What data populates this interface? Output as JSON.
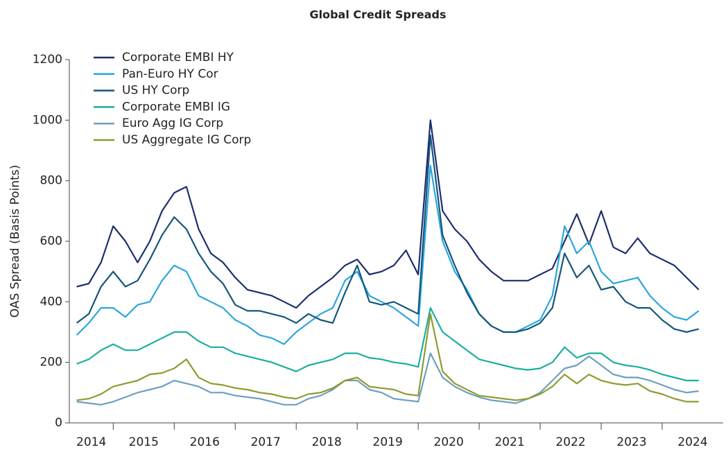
{
  "chart_data": {
    "type": "line",
    "title": "Global Credit Spreads",
    "y_label": "OAS Spread (Basis Points)",
    "categories": [
      "2014",
      "2015",
      "2016",
      "2017",
      "2018",
      "2019",
      "2020",
      "2021",
      "2022",
      "2023",
      "2024"
    ],
    "x": [
      2014.4,
      2014.6,
      2014.8,
      2015.0,
      2015.2,
      2015.4,
      2015.6,
      2015.8,
      2016.0,
      2016.2,
      2016.4,
      2016.6,
      2016.8,
      2017.0,
      2017.2,
      2017.4,
      2017.6,
      2017.8,
      2018.0,
      2018.2,
      2018.4,
      2018.6,
      2018.8,
      2019.0,
      2019.2,
      2019.4,
      2019.6,
      2019.8,
      2020.0,
      2020.2,
      2020.4,
      2020.6,
      2020.8,
      2021.0,
      2021.2,
      2021.4,
      2021.6,
      2021.8,
      2022.0,
      2022.2,
      2022.4,
      2022.6,
      2022.8,
      2023.0,
      2023.2,
      2023.4,
      2023.6,
      2023.8,
      2024.0,
      2024.2,
      2024.4,
      2024.6
    ],
    "xlim": [
      2014.28,
      2025
    ],
    "xticks": [
      2015,
      2016,
      2017,
      2018,
      2019,
      2020,
      2021,
      2022,
      2023,
      2024
    ],
    "ylim": [
      0,
      1200
    ],
    "yticks": [
      0,
      200,
      400,
      600,
      800,
      1000,
      1200
    ],
    "legend": "upper left",
    "series": [
      {
        "name": "Corporate EMBI HY",
        "color": "#1b2f6e",
        "values": [
          450,
          460,
          530,
          650,
          600,
          530,
          600,
          700,
          760,
          780,
          640,
          560,
          530,
          480,
          440,
          430,
          420,
          400,
          380,
          420,
          450,
          480,
          520,
          540,
          490,
          500,
          520,
          570,
          490,
          1000,
          700,
          640,
          600,
          540,
          500,
          470,
          470,
          470,
          490,
          510,
          600,
          690,
          590,
          700,
          580,
          560,
          610,
          560,
          540,
          520,
          480,
          440
        ]
      },
      {
        "name": "Pan-Euro HY Cor",
        "color": "#2aa6dc",
        "values": [
          290,
          330,
          380,
          380,
          350,
          390,
          400,
          470,
          520,
          500,
          420,
          400,
          380,
          340,
          320,
          290,
          280,
          260,
          300,
          330,
          360,
          380,
          470,
          500,
          420,
          400,
          380,
          350,
          320,
          850,
          600,
          500,
          440,
          360,
          320,
          300,
          300,
          320,
          340,
          420,
          650,
          560,
          600,
          500,
          460,
          470,
          480,
          420,
          380,
          350,
          340,
          370
        ]
      },
      {
        "name": "US HY Corp",
        "color": "#15557a",
        "values": [
          330,
          360,
          450,
          500,
          450,
          470,
          540,
          620,
          680,
          640,
          560,
          500,
          460,
          390,
          370,
          370,
          360,
          350,
          330,
          360,
          340,
          330,
          430,
          520,
          400,
          390,
          400,
          380,
          360,
          950,
          620,
          520,
          430,
          360,
          320,
          300,
          300,
          310,
          330,
          380,
          560,
          480,
          520,
          440,
          450,
          400,
          380,
          380,
          340,
          310,
          300,
          310
        ]
      },
      {
        "name": "Corporate EMBI IG",
        "color": "#1aae9f",
        "values": [
          195,
          210,
          240,
          260,
          240,
          240,
          260,
          280,
          300,
          300,
          270,
          250,
          250,
          230,
          220,
          210,
          200,
          185,
          170,
          190,
          200,
          210,
          230,
          230,
          215,
          210,
          200,
          195,
          185,
          380,
          300,
          270,
          240,
          210,
          200,
          190,
          180,
          175,
          180,
          200,
          250,
          215,
          230,
          230,
          200,
          190,
          185,
          175,
          160,
          150,
          140,
          140
        ]
      },
      {
        "name": "Euro Agg IG Corp",
        "color": "#6c9fbf",
        "values": [
          70,
          65,
          60,
          70,
          85,
          100,
          110,
          120,
          140,
          130,
          120,
          100,
          100,
          90,
          85,
          80,
          70,
          60,
          60,
          80,
          90,
          110,
          140,
          140,
          110,
          100,
          80,
          75,
          70,
          230,
          150,
          120,
          100,
          85,
          75,
          70,
          65,
          80,
          100,
          140,
          180,
          190,
          220,
          190,
          160,
          150,
          150,
          140,
          125,
          110,
          100,
          105
        ]
      },
      {
        "name": "US Aggregate IG Corp",
        "color": "#8f9a2e",
        "values": [
          75,
          80,
          95,
          120,
          130,
          140,
          160,
          165,
          180,
          210,
          150,
          130,
          125,
          115,
          110,
          100,
          95,
          85,
          80,
          95,
          100,
          115,
          140,
          150,
          120,
          115,
          110,
          95,
          90,
          360,
          170,
          130,
          110,
          90,
          85,
          80,
          75,
          80,
          95,
          120,
          160,
          130,
          160,
          140,
          130,
          125,
          130,
          105,
          95,
          80,
          70,
          70
        ]
      }
    ]
  }
}
